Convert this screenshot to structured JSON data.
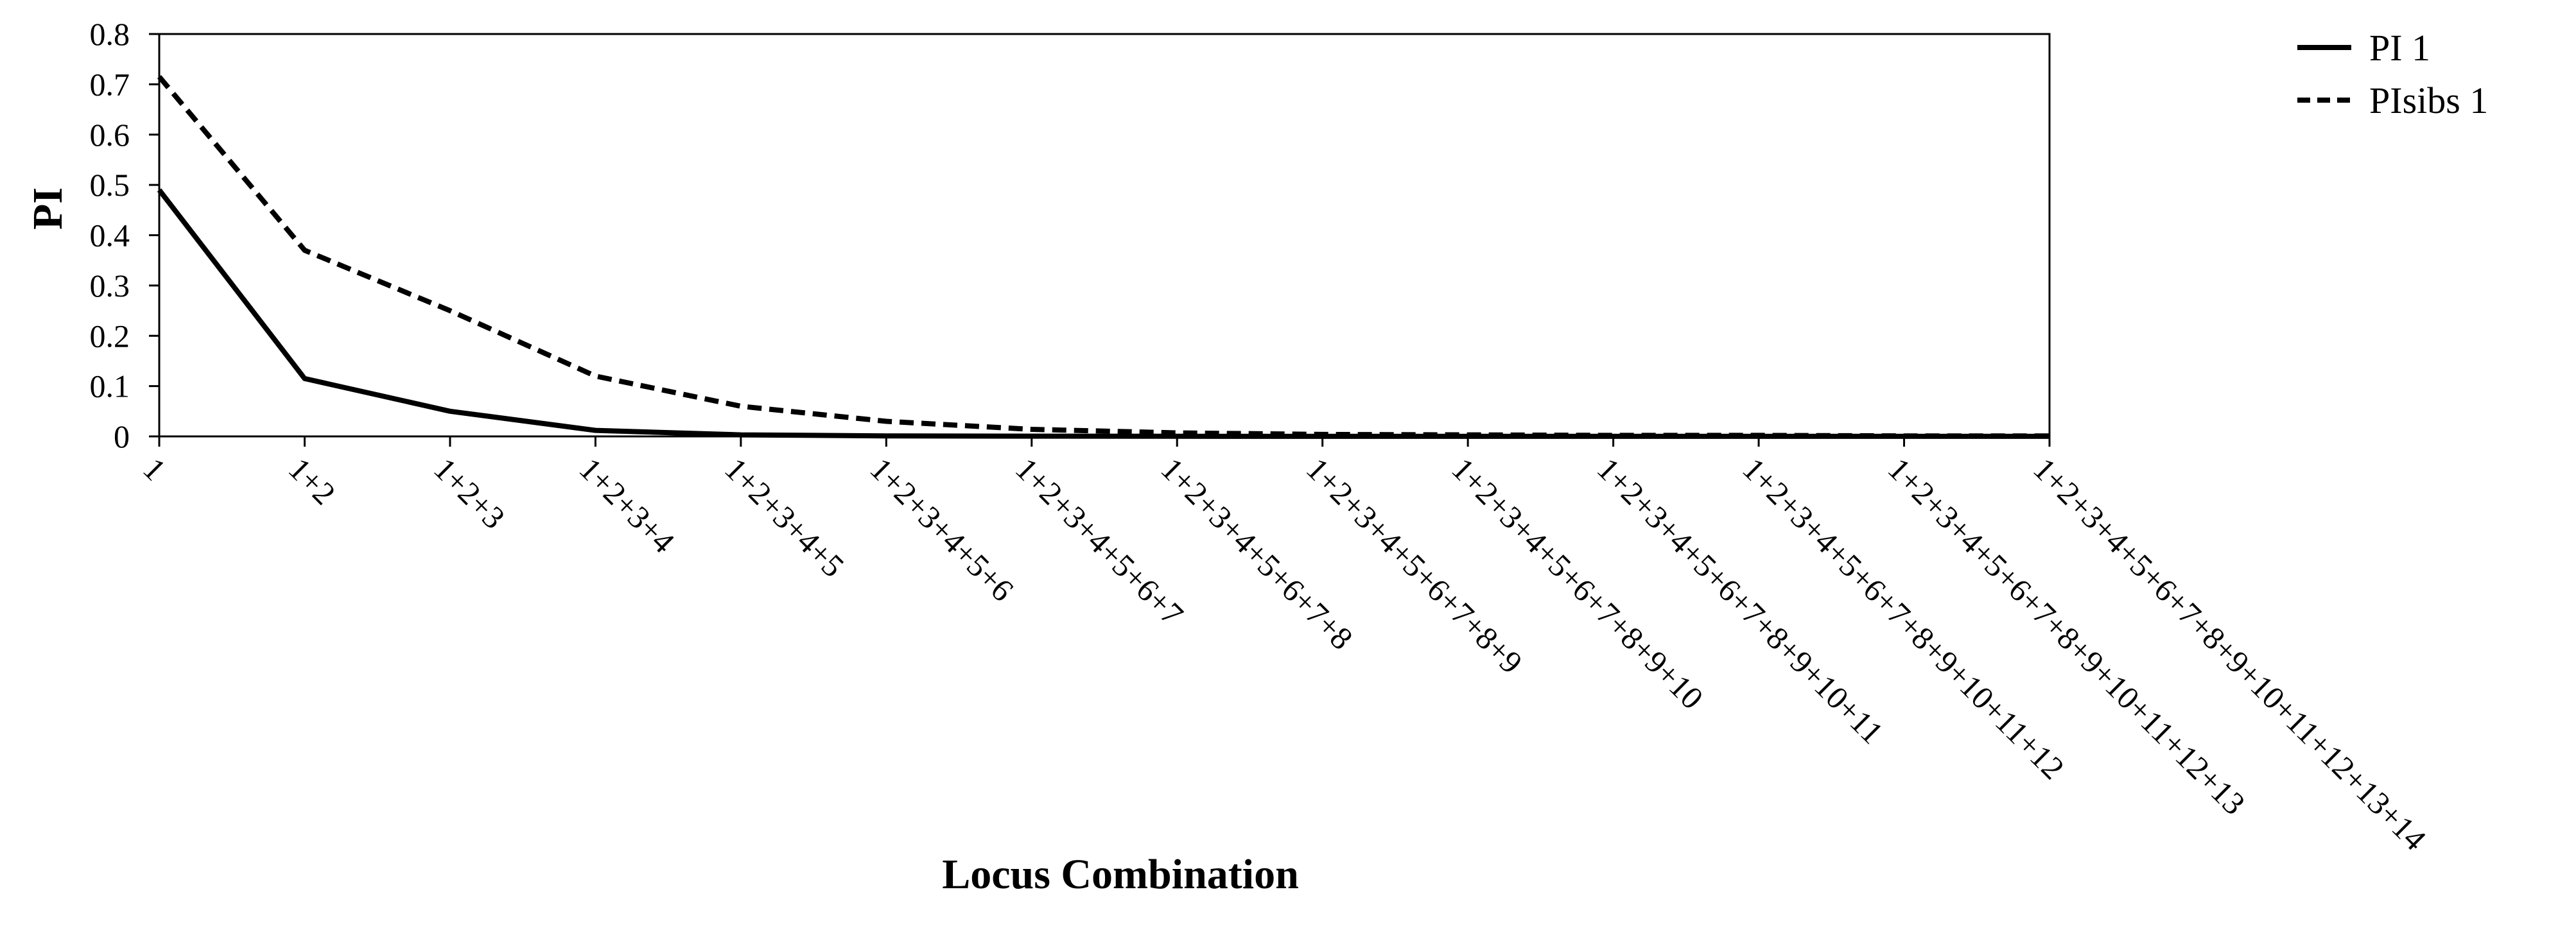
{
  "chart_data": {
    "type": "line",
    "title": "",
    "xlabel": "Locus Combination",
    "ylabel": "PI",
    "ylim": [
      0,
      0.8
    ],
    "yticks": [
      "0",
      "0.1",
      "0.2",
      "0.3",
      "0.4",
      "0.5",
      "0.6",
      "0.7",
      "0.8"
    ],
    "grid": false,
    "legend_position": "top-right",
    "categories": [
      "1",
      "1+2",
      "1+2+3",
      "1+2+3+4",
      "1+2+3+4+5",
      "1+2+3+4+5+6",
      "1+2+3+4+5+6+7",
      "1+2+3+4+5+6+7+8",
      "1+2+3+4+5+6+7+8+9",
      "1+2+3+4+5+6+7+8+9+10",
      "1+2+3+4+5+6+7+8+9+10+11",
      "1+2+3+4+5+6+7+8+9+10+11+12",
      "1+2+3+4+5+6+7+8+9+10+11+12+13",
      "1+2+3+4+5+6+7+8+9+10+11+12+13+14"
    ],
    "series": [
      {
        "name": "PI 1",
        "style": "solid",
        "color": "#000000",
        "values": [
          0.49,
          0.115,
          0.05,
          0.012,
          0.003,
          0.001,
          0.0005,
          0.0002,
          0.0001,
          0.0001,
          0.0001,
          0.0001,
          0.0001,
          0.0001
        ]
      },
      {
        "name": "PIsibs 1",
        "style": "dashed",
        "color": "#000000",
        "values": [
          0.715,
          0.37,
          0.25,
          0.12,
          0.06,
          0.03,
          0.014,
          0.007,
          0.004,
          0.003,
          0.002,
          0.002,
          0.001,
          0.001
        ]
      }
    ]
  }
}
